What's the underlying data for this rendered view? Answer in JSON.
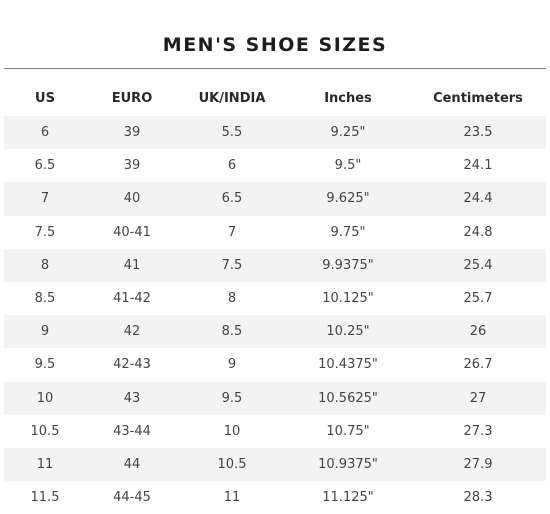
{
  "title": "MEN'S SHOE SIZES",
  "columns": [
    "US",
    "EURO",
    "UK/INDIA",
    "Inches",
    "Centimeters"
  ],
  "rows": [
    [
      "6",
      "39",
      "5.5",
      "9.25\"",
      "23.5"
    ],
    [
      "6.5",
      "39",
      "6",
      "9.5\"",
      "24.1"
    ],
    [
      "7",
      "40",
      "6.5",
      "9.625\"",
      "24.4"
    ],
    [
      "7.5",
      "40-41",
      "7",
      "9.75\"",
      "24.8"
    ],
    [
      "8",
      "41",
      "7.5",
      "9.9375\"",
      "25.4"
    ],
    [
      "8.5",
      "41-42",
      "8",
      "10.125\"",
      "25.7"
    ],
    [
      "9",
      "42",
      "8.5",
      "10.25\"",
      "26"
    ],
    [
      "9.5",
      "42-43",
      "9",
      "10.4375\"",
      "26.7"
    ],
    [
      "10",
      "43",
      "9.5",
      "10.5625\"",
      "27"
    ],
    [
      "10.5",
      "43-44",
      "10",
      "10.75\"",
      "27.3"
    ],
    [
      "11",
      "44",
      "10.5",
      "10.9375\"",
      "27.9"
    ],
    [
      "11.5",
      "44-45",
      "11",
      "11.125\"",
      "28.3"
    ]
  ],
  "colors": {
    "stripe": "#f3f3f3",
    "rule": "#8a7f86",
    "text": "#444444",
    "heading": "#1e1e1e"
  }
}
